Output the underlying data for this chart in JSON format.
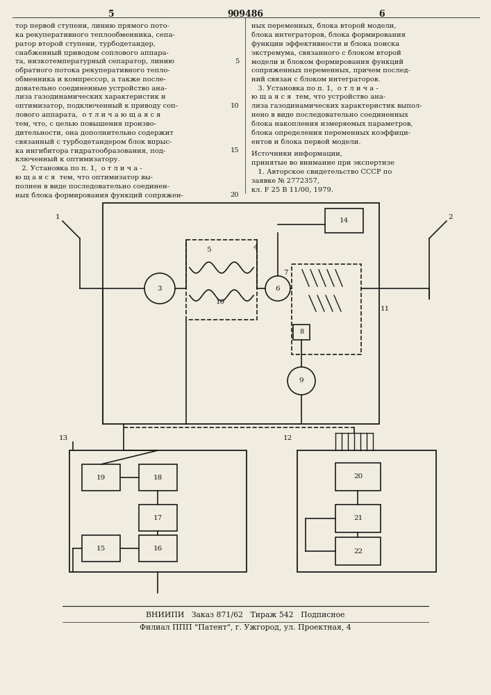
{
  "page_number_left": "5",
  "patent_number": "909486",
  "page_number_right": "6",
  "bg_color": "#f0ece0",
  "text_color": "#1a1a1a",
  "col1_text": [
    "тор первой ступени, линию прямого пото-",
    "ка рекуперативного теплообменника, сепа-",
    "ратор второй ступени, турбодетандер,",
    "снабженный приводом соплового аппара-",
    "та, низкотемпературный сепаратор, линию",
    "обратного потока рекуперативного тепло-",
    "обменника и компрессор, а также после-",
    "довательно соединенные устройство ана-",
    "лиза газодинамических характеристик и",
    "оптимизатор, подключенный к приводу соп-",
    "лового аппарата,  о т л и ч а ю щ а я с я",
    "тем, что, с целью повышения произво-",
    "дительности, она дополнительно содержит",
    "связанный с турбодетандером блок впрыс-",
    "ка ингибитора гидратообразования, под-",
    "ключенный к оптимизатору.",
    "   2. Установка по п. 1,  о т л и ч а -",
    "ю щ а я с я  тем, что оптимизатор вы-",
    "полнен в виде последовательно соединен-",
    "ных блока формирования функций сопряжен-"
  ],
  "col1_line_numbers": [
    null,
    null,
    null,
    null,
    "5",
    null,
    null,
    null,
    null,
    "10",
    null,
    null,
    null,
    null,
    "15",
    null,
    null,
    null,
    null,
    "20"
  ],
  "col2_text": [
    "ных переменных, блока второй модели,",
    "блока интеграторов, блока формирования",
    "функции эффективности и блока поиска",
    "экстремума, связанного с блоком второй",
    "модели и блоком формирования функций",
    "сопряженных переменных, причем послед-",
    "ний связан с блоком интеграторов.",
    "   3. Установка по п. 1,  о т л и ч а -",
    "ю щ а я с я  тем, что устройство ана-",
    "лиза газодинамических характеристик выпол-",
    "нено в виде последовательно соединенных",
    "блока накопления измеряемых параметров,",
    "блока определения переменных коэффици-",
    "ентов и блока первой модели."
  ],
  "sources_text": [
    "Источники информации,",
    "принятые во внимание при экспертизе",
    "   1. Авторское свидетельство СССР по",
    "заявке № 2772357,",
    "кл. F 25 В 11/00, 1979."
  ],
  "footer_line1": "ВНИИПИ   Заказ 871/62   Тираж 542   Подписное",
  "footer_line2": "Филиал ППП \"Патент\", г. Ужгород, ул. Проектная, 4"
}
